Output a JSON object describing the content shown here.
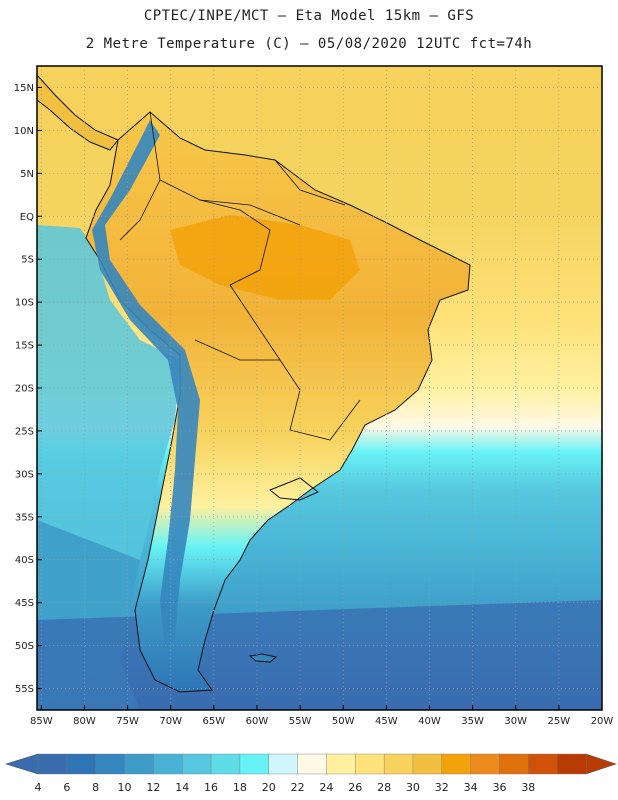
{
  "header": {
    "line1": "CPTEC/INPE/MCT –  Eta Model 15km – GFS",
    "line2": "2 Metre Temperature (C) – 05/08/2020 12UTC fct=74h"
  },
  "map": {
    "lat_range": [
      -57.5,
      17.5
    ],
    "lon_range": [
      -85.5,
      -20.0
    ],
    "lat_ticks": [
      15,
      10,
      5,
      0,
      -5,
      -10,
      -15,
      -20,
      -25,
      -30,
      -35,
      -40,
      -45,
      -50,
      -55
    ],
    "lat_labels": [
      "15N",
      "10N",
      "5N",
      "EQ",
      "5S",
      "10S",
      "15S",
      "20S",
      "25S",
      "30S",
      "35S",
      "40S",
      "45S",
      "50S",
      "55S"
    ],
    "lon_ticks": [
      -85,
      -80,
      -75,
      -70,
      -65,
      -60,
      -55,
      -50,
      -45,
      -40,
      -35,
      -30,
      -25,
      -20
    ],
    "lon_labels": [
      "85W",
      "80W",
      "75W",
      "70W",
      "65W",
      "60W",
      "55W",
      "50W",
      "45W",
      "40W",
      "35W",
      "30W",
      "25W",
      "20W"
    ]
  },
  "colorbar": {
    "ticks": [
      "4",
      "6",
      "8",
      "10",
      "12",
      "14",
      "16",
      "18",
      "20",
      "22",
      "24",
      "26",
      "28",
      "30",
      "32",
      "34",
      "36",
      "38"
    ],
    "colors": [
      "#3a6cb0",
      "#2f75b6",
      "#3586bf",
      "#3d9cc8",
      "#48b2d4",
      "#56c7de",
      "#5edce8",
      "#66f2f6",
      "#d0f5fb",
      "#fff9e6",
      "#fff1a0",
      "#ffe27a",
      "#f7d25c",
      "#f2c040",
      "#f2a20a",
      "#ec8a1c",
      "#e0700c",
      "#cf5208",
      "#b83a05"
    ],
    "low_arrow_color": "#3a6cb0",
    "high_arrow_color": "#b83a05"
  }
}
